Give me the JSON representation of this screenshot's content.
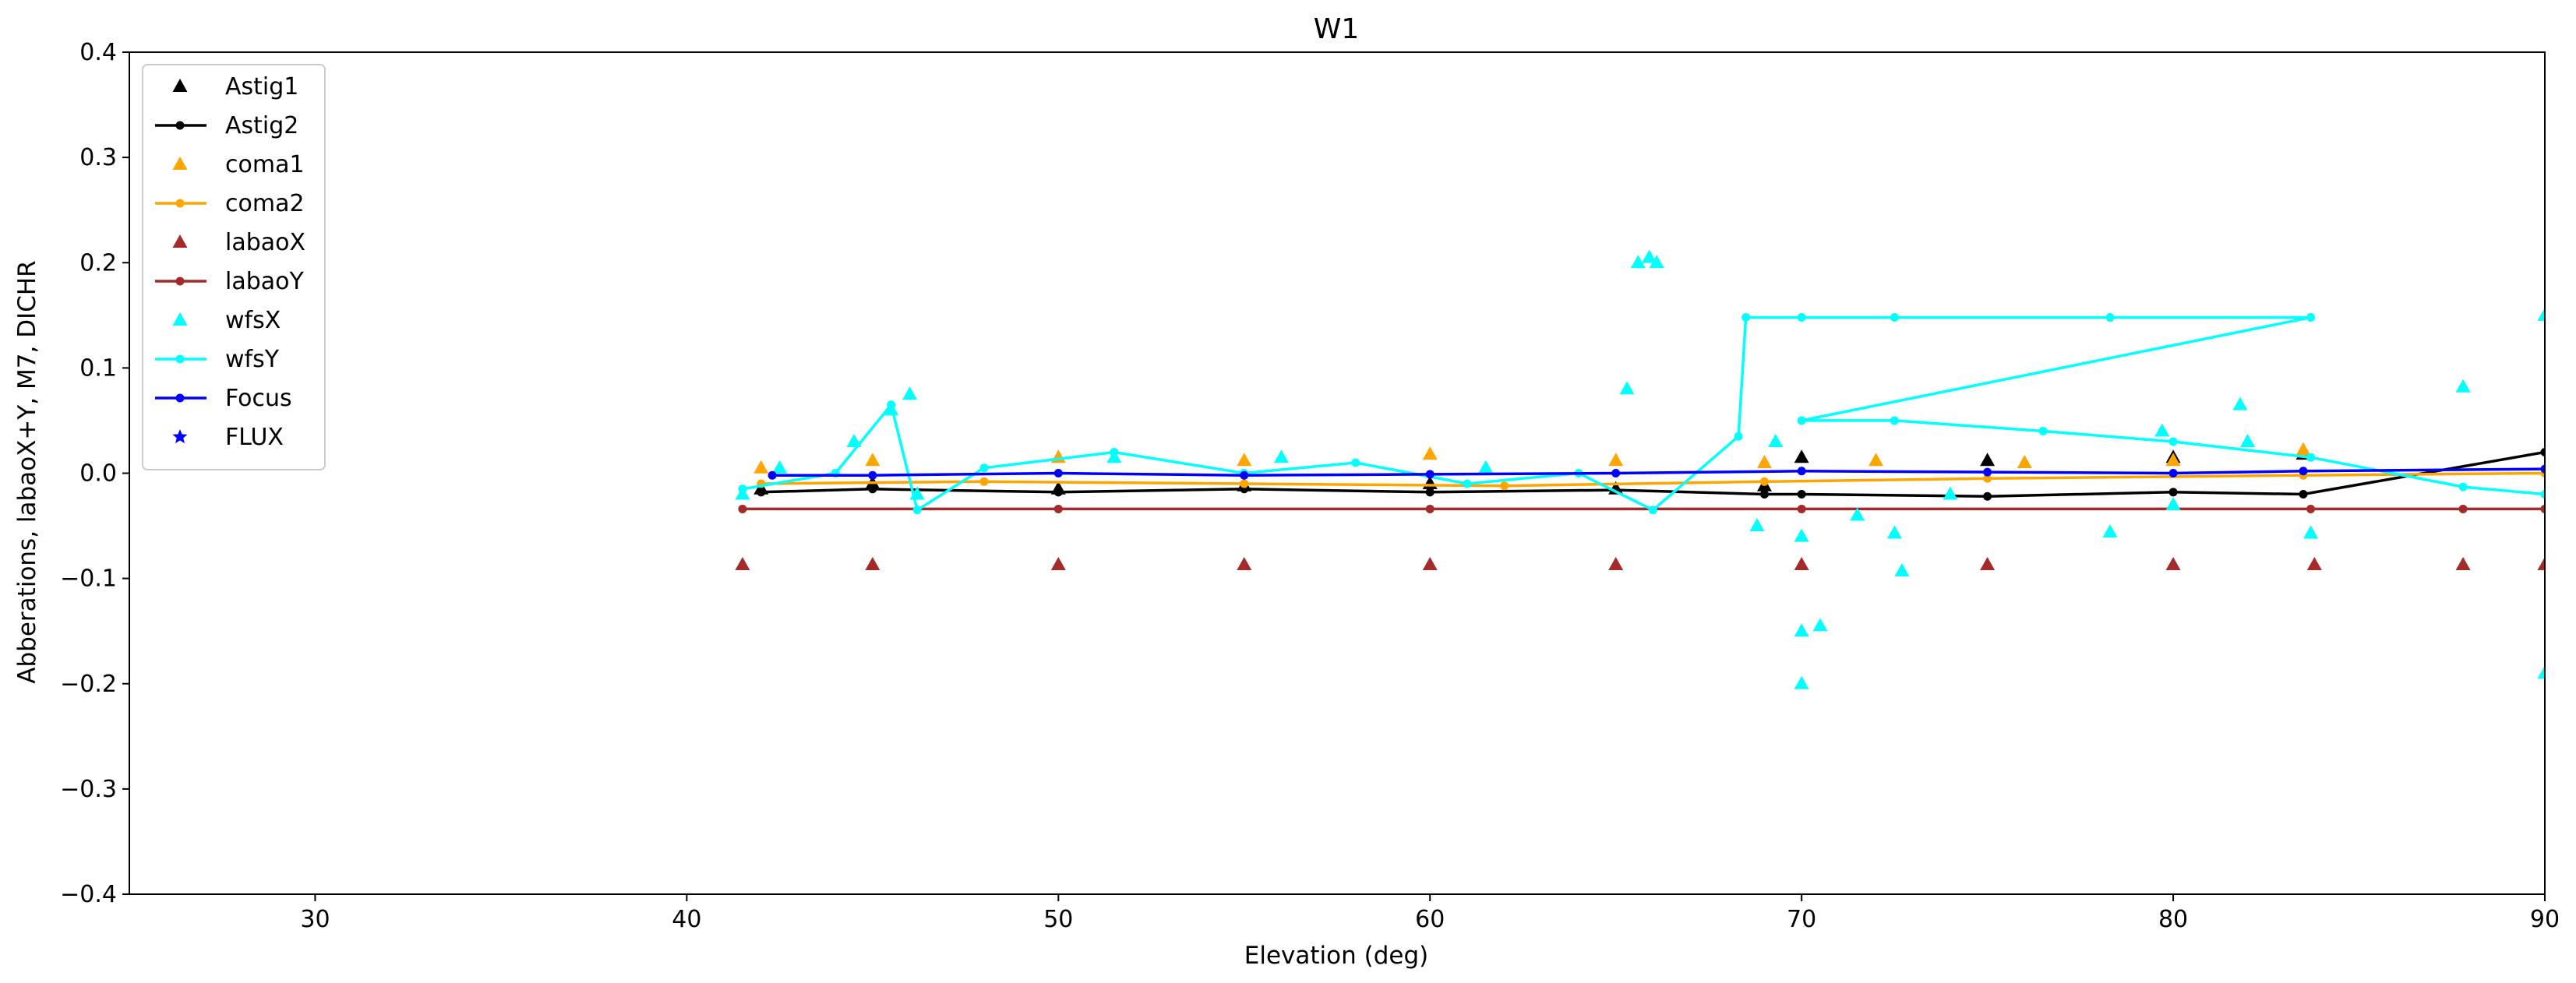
{
  "chart_data": {
    "type": "scatter",
    "title": "W1",
    "xlabel": "Elevation (deg)",
    "ylabel": "Abberations, labaoX+Y, M7, DICHR",
    "xlim": [
      25,
      90
    ],
    "ylim": [
      -0.4,
      0.4
    ],
    "xticks": [
      30,
      40,
      50,
      60,
      70,
      80,
      90
    ],
    "yticks": [
      -0.4,
      -0.3,
      -0.2,
      -0.1,
      0.0,
      0.1,
      0.2,
      0.3,
      0.4
    ],
    "xtick_labels": [
      "30",
      "40",
      "50",
      "60",
      "70",
      "80",
      "90"
    ],
    "ytick_labels": [
      "−0.4",
      "−0.3",
      "−0.2",
      "−0.1",
      "0.0",
      "0.1",
      "0.2",
      "0.3",
      "0.4"
    ],
    "grid": false,
    "legend_position": "upper-left",
    "series": [
      {
        "name": "Astig1",
        "color": "#000000",
        "style": "markers",
        "marker": "triangle",
        "x": [
          42.0,
          45.0,
          50.0,
          55.0,
          60.0,
          65.0,
          69.0,
          70.0,
          75.0,
          80.0,
          83.5
        ],
        "y": [
          -0.015,
          -0.01,
          -0.015,
          -0.012,
          -0.01,
          -0.015,
          -0.012,
          0.015,
          0.012,
          0.015,
          0.018
        ]
      },
      {
        "name": "Astig2",
        "color": "#000000",
        "style": "line-dots",
        "x": [
          42.0,
          45.0,
          50.0,
          55.0,
          60.0,
          65.0,
          69.0,
          70.0,
          75.0,
          80.0,
          83.5,
          90.0
        ],
        "y": [
          -0.018,
          -0.015,
          -0.018,
          -0.015,
          -0.018,
          -0.016,
          -0.02,
          -0.02,
          -0.022,
          -0.018,
          -0.02,
          0.02
        ]
      },
      {
        "name": "coma1",
        "color": "#ffa500",
        "style": "markers",
        "marker": "triangle",
        "x": [
          42.0,
          45.0,
          50.0,
          55.0,
          60.0,
          65.0,
          69.0,
          72.0,
          76.0,
          80.0,
          83.5
        ],
        "y": [
          0.005,
          0.012,
          0.015,
          0.012,
          0.018,
          0.012,
          0.01,
          0.012,
          0.01,
          0.012,
          0.022
        ]
      },
      {
        "name": "coma2",
        "color": "#ffa500",
        "style": "line-dots",
        "x": [
          42.0,
          48.0,
          55.0,
          62.0,
          69.0,
          75.0,
          83.5,
          90.0
        ],
        "y": [
          -0.01,
          -0.008,
          -0.01,
          -0.012,
          -0.008,
          -0.005,
          -0.002,
          0.0
        ]
      },
      {
        "name": "labaoX",
        "color": "#a52a2a",
        "style": "markers",
        "marker": "triangle",
        "x": [
          41.5,
          45.0,
          50.0,
          55.0,
          60.0,
          65.0,
          70.0,
          75.0,
          80.0,
          83.8,
          87.8,
          90.0
        ],
        "y": [
          -0.087,
          -0.087,
          -0.087,
          -0.087,
          -0.087,
          -0.087,
          -0.087,
          -0.087,
          -0.087,
          -0.087,
          -0.087,
          -0.087
        ]
      },
      {
        "name": "labaoY",
        "color": "#a52a2a",
        "style": "line-dots",
        "x": [
          41.5,
          50.0,
          60.0,
          70.0,
          83.7,
          87.8,
          90.0
        ],
        "y": [
          -0.034,
          -0.034,
          -0.034,
          -0.034,
          -0.034,
          -0.034,
          -0.034
        ]
      },
      {
        "name": "wfsX",
        "color": "#00ffff",
        "style": "markers",
        "marker": "triangle",
        "x": [
          41.5,
          42.5,
          44.5,
          45.5,
          46.0,
          46.2,
          51.5,
          56.0,
          61.5,
          65.3,
          65.6,
          65.9,
          66.1,
          68.8,
          69.3,
          70.0,
          70.0,
          70.0,
          70.5,
          71.5,
          72.7,
          72.5,
          74.0,
          78.3,
          79.7,
          80.0,
          81.8,
          82.0,
          83.7,
          87.8,
          90.0,
          90.0
        ],
        "y": [
          -0.02,
          0.005,
          0.03,
          0.06,
          0.075,
          -0.02,
          0.015,
          0.015,
          0.005,
          0.08,
          0.2,
          0.205,
          0.2,
          -0.05,
          0.03,
          -0.2,
          -0.15,
          -0.06,
          -0.145,
          -0.04,
          -0.093,
          -0.057,
          -0.02,
          -0.056,
          0.04,
          -0.03,
          0.065,
          0.03,
          -0.057,
          0.082,
          0.15,
          -0.19
        ]
      },
      {
        "name": "wfsY",
        "color": "#00ffff",
        "style": "line-dots",
        "x": [
          41.5,
          44.0,
          45.5,
          46.2,
          48.0,
          51.5,
          55.0,
          58.0,
          61.0,
          64.0,
          66.0,
          68.3,
          68.5,
          70.0,
          72.5,
          78.3,
          83.7,
          70.0,
          72.5,
          76.5,
          80.0,
          83.7,
          87.8,
          90.0
        ],
        "y": [
          -0.015,
          0.0,
          0.065,
          -0.035,
          0.005,
          0.02,
          0.0,
          0.01,
          -0.01,
          0.0,
          -0.035,
          0.035,
          0.148,
          0.148,
          0.148,
          0.148,
          0.148,
          0.05,
          0.05,
          0.04,
          0.03,
          0.015,
          -0.013,
          -0.02
        ]
      },
      {
        "name": "Focus",
        "color": "#0000ff",
        "style": "line-dots",
        "x": [
          42.3,
          45.0,
          50.0,
          55.0,
          60.0,
          65.0,
          70.0,
          75.0,
          80.0,
          83.5,
          90.0
        ],
        "y": [
          -0.002,
          -0.002,
          0.0,
          -0.002,
          -0.001,
          0.0,
          0.002,
          0.001,
          0.0,
          0.002,
          0.004
        ]
      },
      {
        "name": "FLUX",
        "color": "#0000ff",
        "style": "markers",
        "marker": "star",
        "x": [],
        "y": []
      }
    ]
  }
}
